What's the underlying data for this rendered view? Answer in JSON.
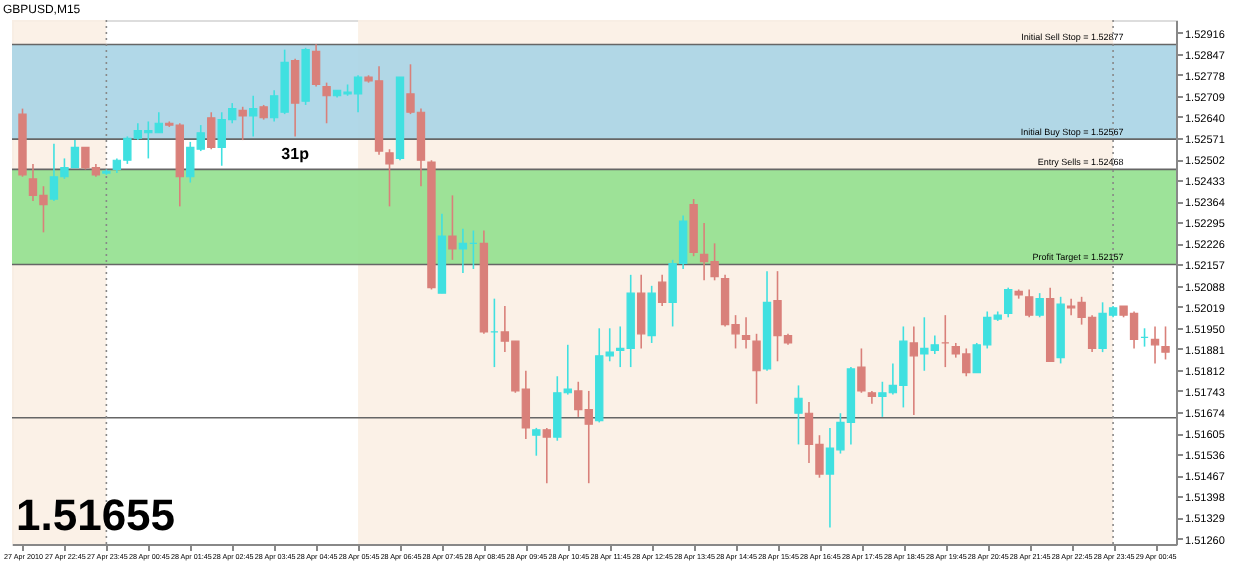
{
  "chart_data": {
    "type": "candlestick",
    "title": "GBPUSD,M15",
    "x": [
      "2010-04-27T21:45",
      "2010-04-27T22:00",
      "2010-04-27T22:15",
      "2010-04-27T22:30",
      "2010-04-27T22:45",
      "2010-04-27T23:00",
      "2010-04-27T23:15",
      "2010-04-27T23:30",
      "2010-04-27T23:45",
      "2010-04-28T00:00",
      "2010-04-28T00:15",
      "2010-04-28T00:30",
      "2010-04-28T00:45",
      "2010-04-28T01:00",
      "2010-04-28T01:15",
      "2010-04-28T01:30",
      "2010-04-28T01:45",
      "2010-04-28T02:00",
      "2010-04-28T02:15",
      "2010-04-28T02:30",
      "2010-04-28T02:45",
      "2010-04-28T03:00",
      "2010-04-28T03:15",
      "2010-04-28T03:30",
      "2010-04-28T03:45",
      "2010-04-28T04:00",
      "2010-04-28T04:15",
      "2010-04-28T04:30",
      "2010-04-28T04:45",
      "2010-04-28T05:00",
      "2010-04-28T05:15",
      "2010-04-28T05:30",
      "2010-04-28T05:45",
      "2010-04-28T06:00",
      "2010-04-28T06:15",
      "2010-04-28T06:30",
      "2010-04-28T06:45",
      "2010-04-28T07:00",
      "2010-04-28T07:15",
      "2010-04-28T07:30",
      "2010-04-28T07:45",
      "2010-04-28T08:00",
      "2010-04-28T08:15",
      "2010-04-28T08:30",
      "2010-04-28T08:45",
      "2010-04-28T09:00",
      "2010-04-28T09:15",
      "2010-04-28T09:30",
      "2010-04-28T09:45",
      "2010-04-28T10:00",
      "2010-04-28T10:15",
      "2010-04-28T10:30",
      "2010-04-28T10:45",
      "2010-04-28T11:00",
      "2010-04-28T11:15",
      "2010-04-28T11:30",
      "2010-04-28T11:45",
      "2010-04-28T12:00",
      "2010-04-28T12:15",
      "2010-04-28T12:30",
      "2010-04-28T12:45",
      "2010-04-28T13:00",
      "2010-04-28T13:15",
      "2010-04-28T13:30",
      "2010-04-28T13:45",
      "2010-04-28T14:00",
      "2010-04-28T14:15",
      "2010-04-28T14:30",
      "2010-04-28T14:45",
      "2010-04-28T15:00",
      "2010-04-28T15:15",
      "2010-04-28T15:30",
      "2010-04-28T15:45",
      "2010-04-28T16:00",
      "2010-04-28T16:15",
      "2010-04-28T16:30",
      "2010-04-28T16:45",
      "2010-04-28T17:00",
      "2010-04-28T17:15",
      "2010-04-28T17:30",
      "2010-04-28T17:45",
      "2010-04-28T18:00",
      "2010-04-28T18:15",
      "2010-04-28T18:30",
      "2010-04-28T18:45",
      "2010-04-28T19:00",
      "2010-04-28T19:15",
      "2010-04-28T19:30",
      "2010-04-28T19:45",
      "2010-04-28T20:00",
      "2010-04-28T20:15",
      "2010-04-28T20:30",
      "2010-04-28T20:45",
      "2010-04-28T21:00",
      "2010-04-28T21:15",
      "2010-04-28T21:30",
      "2010-04-28T21:45",
      "2010-04-28T22:00",
      "2010-04-28T22:15",
      "2010-04-28T22:30",
      "2010-04-28T22:45",
      "2010-04-28T23:00",
      "2010-04-28T23:15",
      "2010-04-28T23:30",
      "2010-04-28T23:45",
      "2010-04-29T00:00",
      "2010-04-29T00:15",
      "2010-04-29T00:30",
      "2010-04-29T00:45",
      "2010-04-29T01:00"
    ],
    "ohlc": [
      [
        1.52649,
        1.52667,
        1.52444,
        1.5245
      ],
      [
        1.52437,
        1.52486,
        1.52365,
        1.52383
      ],
      [
        1.52383,
        1.52413,
        1.52262,
        1.52353
      ],
      [
        1.52371,
        1.52552,
        1.52365,
        1.52444
      ],
      [
        1.52444,
        1.52504,
        1.52437,
        1.52474
      ],
      [
        1.52474,
        1.52564,
        1.52474,
        1.5254
      ],
      [
        1.5254,
        1.5254,
        1.52468,
        1.52474
      ],
      [
        1.52474,
        1.52486,
        1.52444,
        1.5245
      ],
      [
        1.52456,
        1.52468,
        1.5245,
        1.52462
      ],
      [
        1.52468,
        1.52504,
        1.52456,
        1.52498
      ],
      [
        1.52498,
        1.52576,
        1.52486,
        1.5257
      ],
      [
        1.5257,
        1.52619,
        1.52564,
        1.52595
      ],
      [
        1.52588,
        1.52625,
        1.52504,
        1.52595
      ],
      [
        1.52588,
        1.52655,
        1.52588,
        1.52619
      ],
      [
        1.52619,
        1.52625,
        1.52607,
        1.52613
      ],
      [
        1.52613,
        1.52619,
        1.52347,
        1.52444
      ],
      [
        1.52444,
        1.52558,
        1.52425,
        1.5254
      ],
      [
        1.52534,
        1.52613,
        1.52528,
        1.52588
      ],
      [
        1.52637,
        1.52655,
        1.52534,
        1.5254
      ],
      [
        1.5254,
        1.52655,
        1.5248,
        1.52631
      ],
      [
        1.52631,
        1.52685,
        1.52619,
        1.52667
      ],
      [
        1.52661,
        1.52673,
        1.52564,
        1.52643
      ],
      [
        1.52643,
        1.52709,
        1.52576,
        1.52667
      ],
      [
        1.52673,
        1.52679,
        1.52631,
        1.52637
      ],
      [
        1.52637,
        1.52727,
        1.52625,
        1.52709
      ],
      [
        1.52655,
        1.5286,
        1.52649,
        1.52818
      ],
      [
        1.52824,
        1.5283,
        1.52576,
        1.52685
      ],
      [
        1.52691,
        1.52866,
        1.52679,
        1.5286
      ],
      [
        1.52854,
        1.52878,
        1.52739,
        1.52746
      ],
      [
        1.52739,
        1.52752,
        1.52619,
        1.52709
      ],
      [
        1.52709,
        1.52727,
        1.52703,
        1.52727
      ],
      [
        1.52715,
        1.52746,
        1.52709,
        1.52721
      ],
      [
        1.52715,
        1.52776,
        1.52655,
        1.5277
      ],
      [
        1.5277,
        1.52776,
        1.52752,
        1.52758
      ],
      [
        1.52758,
        1.52806,
        1.52516,
        1.52528
      ],
      [
        1.52522,
        1.52534,
        1.52347,
        1.52486
      ],
      [
        1.52504,
        1.5277,
        1.52498,
        1.5277
      ],
      [
        1.52715,
        1.52812,
        1.52649,
        1.52655
      ],
      [
        1.52655,
        1.52667,
        1.52413,
        1.52498
      ],
      [
        1.52492,
        1.52498,
        1.52075,
        1.52081
      ],
      [
        1.52063,
        1.52323,
        1.52063,
        1.5225
      ],
      [
        1.5225,
        1.52383,
        1.52172,
        1.52208
      ],
      [
        1.52208,
        1.52274,
        1.52129,
        1.52226
      ],
      [
        1.52226,
        1.52268,
        1.52142,
        1.52226
      ],
      [
        1.52226,
        1.52268,
        1.5193,
        1.51936
      ],
      [
        1.51936,
        1.52045,
        1.51821,
        1.51936
      ],
      [
        1.51936,
        1.52021,
        1.5187,
        1.51906
      ],
      [
        1.51906,
        1.51906,
        1.51737,
        1.51743
      ],
      [
        1.51749,
        1.51809,
        1.51586,
        1.51622
      ],
      [
        1.51598,
        1.51622,
        1.51531,
        1.51616
      ],
      [
        1.51616,
        1.51622,
        1.51441,
        1.51592
      ],
      [
        1.51592,
        1.51791,
        1.5158,
        1.51737
      ],
      [
        1.51737,
        1.51894,
        1.51731,
        1.51749
      ],
      [
        1.51743,
        1.51773,
        1.51658,
        1.51682
      ],
      [
        1.51682,
        1.51743,
        1.51441,
        1.51634
      ],
      [
        1.51646,
        1.51948,
        1.5164,
        1.51858
      ],
      [
        1.51858,
        1.51948,
        1.5184,
        1.5187
      ],
      [
        1.51876,
        1.51954,
        1.51821,
        1.51882
      ],
      [
        1.51882,
        1.52123,
        1.51821,
        1.52063
      ],
      [
        1.52063,
        1.52123,
        1.51882,
        1.5193
      ],
      [
        1.51924,
        1.52087,
        1.519,
        1.52063
      ],
      [
        1.52099,
        1.52123,
        1.52021,
        1.52033
      ],
      [
        1.52033,
        1.52172,
        1.51954,
        1.5216
      ],
      [
        1.5216,
        1.52317,
        1.52142,
        1.52299
      ],
      [
        1.52353,
        1.52371,
        1.52184,
        1.52196
      ],
      [
        1.5219,
        1.52293,
        1.52105,
        1.52166
      ],
      [
        1.52166,
        1.52226,
        1.52105,
        1.52117
      ],
      [
        1.52111,
        1.52123,
        1.51954,
        1.5196
      ],
      [
        1.5196,
        1.51991,
        1.51882,
        1.5193
      ],
      [
        1.51924,
        1.51984,
        1.51882,
        1.51912
      ],
      [
        1.51906,
        1.5193,
        1.51701,
        1.51809
      ],
      [
        1.51815,
        1.52135,
        1.51809,
        1.52033
      ],
      [
        1.52039,
        1.52135,
        1.5184,
        1.51924
      ],
      [
        1.51924,
        1.5193,
        1.51894,
        1.519
      ],
      [
        1.5167,
        1.51761,
        1.51568,
        1.51719
      ],
      [
        1.5167,
        1.51707,
        1.51507,
        1.51568
      ],
      [
        1.51568,
        1.51598,
        1.51459,
        1.51471
      ],
      [
        1.51471,
        1.51622,
        1.51296,
        1.51556
      ],
      [
        1.5155,
        1.5167,
        1.51538,
        1.5164
      ],
      [
        1.5164,
        1.51821,
        1.51568,
        1.51815
      ],
      [
        1.51821,
        1.51882,
        1.51737,
        1.51743
      ],
      [
        1.51737,
        1.51743,
        1.51701,
        1.51725
      ],
      [
        1.51725,
        1.51773,
        1.51658,
        1.51737
      ],
      [
        1.51737,
        1.51833,
        1.51731,
        1.51761
      ],
      [
        1.51761,
        1.51954,
        1.51689,
        1.51906
      ],
      [
        1.519,
        1.51954,
        1.51664,
        1.51858
      ],
      [
        1.51864,
        1.51984,
        1.51809,
        1.51882
      ],
      [
        1.51876,
        1.51924,
        1.51864,
        1.51894
      ],
      [
        1.519,
        1.51991,
        1.51821,
        1.519
      ],
      [
        1.51888,
        1.519,
        1.51852,
        1.51864
      ],
      [
        1.51864,
        1.51882,
        1.51791,
        1.51803
      ],
      [
        1.51803,
        1.519,
        1.51803,
        1.51894
      ],
      [
        1.51894,
        1.52003,
        1.51882,
        1.51984
      ],
      [
        1.51978,
        1.52003,
        1.51972,
        1.51991
      ],
      [
        1.51997,
        1.52081,
        1.51984,
        1.52075
      ],
      [
        1.52069,
        1.52075,
        1.52045,
        1.52057
      ],
      [
        1.52051,
        1.52075,
        1.51984,
        1.51991
      ],
      [
        1.51991,
        1.52063,
        1.51984,
        1.52045
      ],
      [
        1.52045,
        1.52081,
        1.5184,
        1.5184
      ],
      [
        1.51852,
        1.52051,
        1.51833,
        1.52027
      ],
      [
        1.52021,
        1.52045,
        1.51991,
        1.52015
      ],
      [
        1.52033,
        1.52051,
        1.5196,
        1.51984
      ],
      [
        1.51984,
        1.51991,
        1.5187,
        1.51882
      ],
      [
        1.51882,
        1.52033,
        1.5187,
        1.51997
      ],
      [
        1.51991,
        1.52021,
        1.51984,
        1.52015
      ],
      [
        1.52021,
        1.52021,
        1.51984,
        1.51991
      ],
      [
        1.51997,
        1.52003,
        1.51882,
        1.51912
      ],
      [
        1.51918,
        1.51948,
        1.51888,
        1.51918
      ],
      [
        1.51912,
        1.51954,
        1.51833,
        1.51894
      ],
      [
        1.51888,
        1.51954,
        1.51846,
        1.5187
      ]
    ],
    "colors": [
      "#d9807a",
      "#d9807a",
      "#d9807a",
      "#40e0e0",
      "#40e0e0",
      "#40e0e0",
      "#d9807a",
      "#d9807a",
      "#40e0e0",
      "#40e0e0",
      "#40e0e0",
      "#40e0e0",
      "#40e0e0",
      "#40e0e0",
      "#d9807a",
      "#d9807a",
      "#40e0e0",
      "#40e0e0",
      "#d9807a",
      "#40e0e0",
      "#40e0e0",
      "#d9807a",
      "#40e0e0",
      "#d9807a",
      "#40e0e0",
      "#40e0e0",
      "#d9807a",
      "#40e0e0",
      "#d9807a",
      "#d9807a",
      "#40e0e0",
      "#40e0e0",
      "#40e0e0",
      "#d9807a",
      "#d9807a",
      "#d9807a",
      "#40e0e0",
      "#d9807a",
      "#d9807a",
      "#d9807a",
      "#40e0e0",
      "#d9807a",
      "#40e0e0",
      "#40e0e0",
      "#d9807a",
      "#40e0e0",
      "#d9807a",
      "#d9807a",
      "#d9807a",
      "#40e0e0",
      "#d9807a",
      "#40e0e0",
      "#40e0e0",
      "#d9807a",
      "#d9807a",
      "#40e0e0",
      "#40e0e0",
      "#40e0e0",
      "#40e0e0",
      "#d9807a",
      "#40e0e0",
      "#d9807a",
      "#40e0e0",
      "#40e0e0",
      "#d9807a",
      "#d9807a",
      "#d9807a",
      "#d9807a",
      "#d9807a",
      "#d9807a",
      "#d9807a",
      "#40e0e0",
      "#d9807a",
      "#d9807a",
      "#40e0e0",
      "#d9807a",
      "#d9807a",
      "#40e0e0",
      "#40e0e0",
      "#40e0e0",
      "#d9807a",
      "#d9807a",
      "#40e0e0",
      "#40e0e0",
      "#40e0e0",
      "#d9807a",
      "#40e0e0",
      "#40e0e0",
      "#d9807a",
      "#d9807a",
      "#d9807a",
      "#40e0e0",
      "#40e0e0",
      "#40e0e0",
      "#40e0e0",
      "#d9807a",
      "#d9807a",
      "#40e0e0",
      "#d9807a",
      "#40e0e0",
      "#d9807a",
      "#d9807a",
      "#d9807a",
      "#40e0e0",
      "#40e0e0",
      "#d9807a",
      "#d9807a",
      "#40e0e0",
      "#d9807a",
      "#d9807a"
    ],
    "xlim": [
      "2010-04-27T21:30",
      "2010-04-29T01:15"
    ],
    "xticks": [
      {
        "value": "2010-04-27T21:45",
        "label": "27 Apr 2010"
      },
      {
        "value": "2010-04-27T22:45",
        "label": "27 Apr 22:45"
      },
      {
        "value": "2010-04-27T23:45",
        "label": "27 Apr 23:45"
      },
      {
        "value": "2010-04-28T00:45",
        "label": "28 Apr 00:45"
      },
      {
        "value": "2010-04-28T01:45",
        "label": "28 Apr 01:45"
      },
      {
        "value": "2010-04-28T02:45",
        "label": "28 Apr 02:45"
      },
      {
        "value": "2010-04-28T03:45",
        "label": "28 Apr 03:45"
      },
      {
        "value": "2010-04-28T04:45",
        "label": "28 Apr 04:45"
      },
      {
        "value": "2010-04-28T05:45",
        "label": "28 Apr 05:45"
      },
      {
        "value": "2010-04-28T06:45",
        "label": "28 Apr 06:45"
      },
      {
        "value": "2010-04-28T07:45",
        "label": "28 Apr 07:45"
      },
      {
        "value": "2010-04-28T08:45",
        "label": "28 Apr 08:45"
      },
      {
        "value": "2010-04-28T09:45",
        "label": "28 Apr 09:45"
      },
      {
        "value": "2010-04-28T10:45",
        "label": "28 Apr 10:45"
      },
      {
        "value": "2010-04-28T11:45",
        "label": "28 Apr 11:45"
      },
      {
        "value": "2010-04-28T12:45",
        "label": "28 Apr 12:45"
      },
      {
        "value": "2010-04-28T13:45",
        "label": "28 Apr 13:45"
      },
      {
        "value": "2010-04-28T14:45",
        "label": "28 Apr 14:45"
      },
      {
        "value": "2010-04-28T15:45",
        "label": "28 Apr 15:45"
      },
      {
        "value": "2010-04-28T16:45",
        "label": "28 Apr 16:45"
      },
      {
        "value": "2010-04-28T17:45",
        "label": "28 Apr 17:45"
      },
      {
        "value": "2010-04-28T18:45",
        "label": "28 Apr 18:45"
      },
      {
        "value": "2010-04-28T19:45",
        "label": "28 Apr 19:45"
      },
      {
        "value": "2010-04-28T20:45",
        "label": "28 Apr 20:45"
      },
      {
        "value": "2010-04-28T21:45",
        "label": "28 Apr 21:45"
      },
      {
        "value": "2010-04-28T22:45",
        "label": "28 Apr 22:45"
      },
      {
        "value": "2010-04-28T23:45",
        "label": "28 Apr 23:45"
      },
      {
        "value": "2010-04-29T00:45",
        "label": "29 Apr 00:45"
      }
    ],
    "ylim": [
      1.51242,
      1.52957
    ],
    "yticks": [
      {
        "value": 1.5126,
        "label": "1.51260"
      },
      {
        "value": 1.51329,
        "label": "1.51329"
      },
      {
        "value": 1.51398,
        "label": "1.51398"
      },
      {
        "value": 1.51467,
        "label": "1.51467"
      },
      {
        "value": 1.51536,
        "label": "1.51536"
      },
      {
        "value": 1.51605,
        "label": "1.51605"
      },
      {
        "value": 1.51674,
        "label": "1.51674"
      },
      {
        "value": 1.51743,
        "label": "1.51743"
      },
      {
        "value": 1.51812,
        "label": "1.51812"
      },
      {
        "value": 1.51881,
        "label": "1.51881"
      },
      {
        "value": 1.5195,
        "label": "1.51950"
      },
      {
        "value": 1.52019,
        "label": "1.52019"
      },
      {
        "value": 1.52088,
        "label": "1.52088"
      },
      {
        "value": 1.52157,
        "label": "1.52157"
      },
      {
        "value": 1.52226,
        "label": "1.52226"
      },
      {
        "value": 1.52295,
        "label": "1.52295"
      },
      {
        "value": 1.52364,
        "label": "1.52364"
      },
      {
        "value": 1.52433,
        "label": "1.52433"
      },
      {
        "value": 1.52502,
        "label": "1.52502"
      },
      {
        "value": 1.52571,
        "label": "1.52571"
      },
      {
        "value": 1.5264,
        "label": "1.52640"
      },
      {
        "value": 1.52709,
        "label": "1.52709"
      },
      {
        "value": 1.52778,
        "label": "1.52778"
      },
      {
        "value": 1.52847,
        "label": "1.52847"
      },
      {
        "value": 1.52916,
        "label": "1.52916"
      }
    ],
    "bands": [
      {
        "axis": "x",
        "from": "2010-04-27T21:30",
        "to": "2010-04-27T23:45",
        "label": null,
        "color": "#fbefe4"
      },
      {
        "axis": "x",
        "from": "2010-04-28T05:45",
        "to": "2010-04-28T23:45",
        "label": null,
        "color": "#fbefe4"
      },
      {
        "axis": "y",
        "from": 1.52567,
        "to": 1.52877,
        "label": null,
        "color": "#a8d4e6"
      },
      {
        "axis": "y",
        "from": 1.52157,
        "to": 1.52468,
        "label": null,
        "color": "#92e08e"
      }
    ],
    "ref_lines": [
      {
        "axis": "y",
        "value": 1.52877,
        "label": "Initial Sell Stop = 1.52877",
        "color": "#666666",
        "line_style": "solid"
      },
      {
        "axis": "y",
        "value": 1.52567,
        "label": "Initial Buy Stop = 1.52567",
        "color": "#666666",
        "line_style": "solid"
      },
      {
        "axis": "y",
        "value": 1.52468,
        "label": "Entry Sells = 1.52468",
        "color": "#666666",
        "line_style": "solid"
      },
      {
        "axis": "y",
        "value": 1.52157,
        "label": "Profit Target = 1.52157",
        "color": "#666666",
        "line_style": "solid"
      },
      {
        "axis": "y",
        "value": 1.51655,
        "label": null,
        "color": "#666666",
        "line_style": "solid"
      },
      {
        "axis": "x",
        "value": "2010-04-27T23:45",
        "label": null,
        "color": "#888888",
        "line_style": "dotted"
      },
      {
        "axis": "x",
        "value": "2010-04-28T23:45",
        "label": null,
        "color": "#888888",
        "line_style": "dotted"
      }
    ],
    "annotations": [
      "1.51655",
      {
        "text": "31p",
        "x": "2010-04-28T04:15",
        "y": 1.5254
      }
    ]
  }
}
